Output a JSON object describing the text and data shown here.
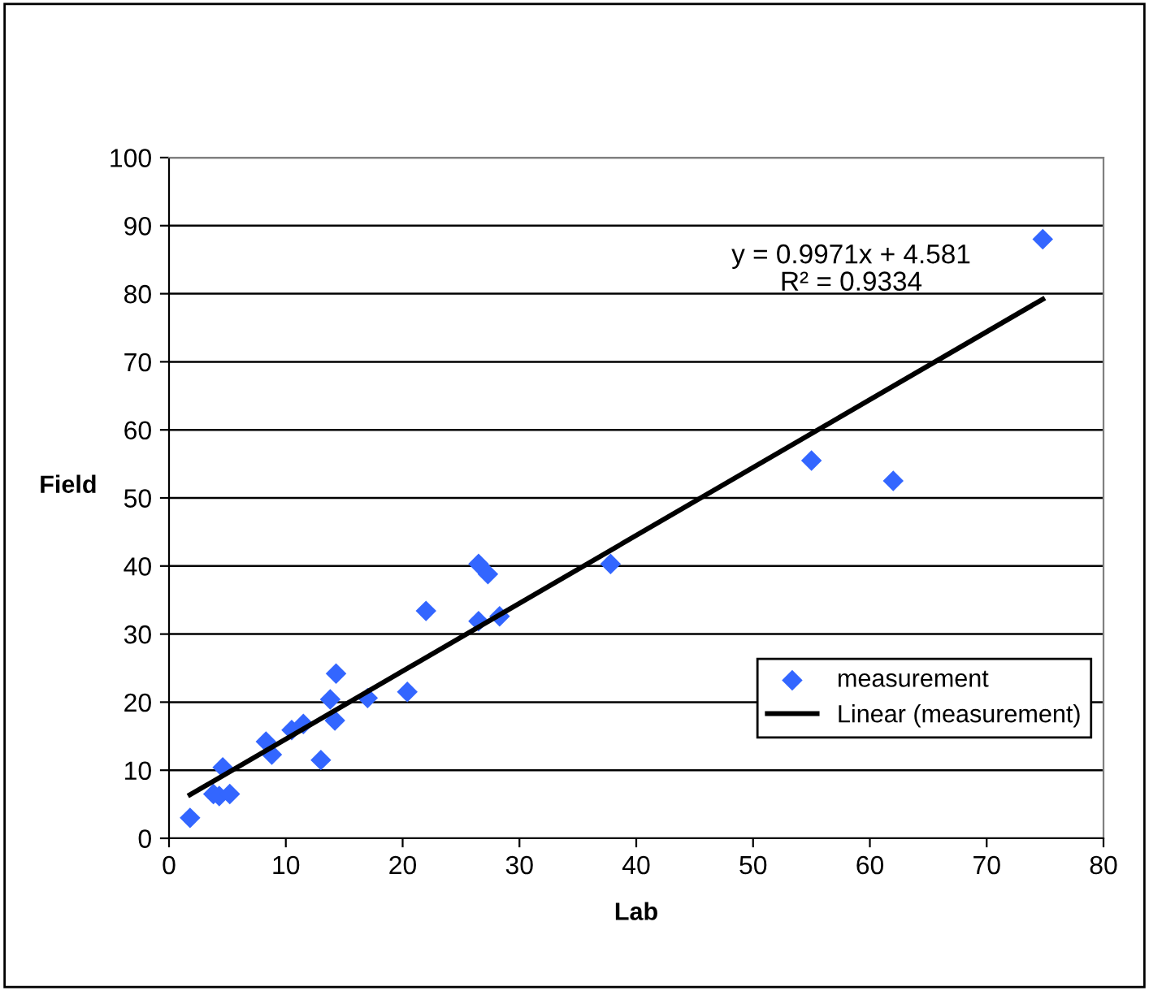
{
  "chart_data": {
    "type": "scatter",
    "xlabel": "Lab",
    "ylabel": "Field",
    "series": [
      {
        "name": "measurement",
        "color": "#3366ff",
        "marker": "diamond",
        "x": [
          1.8,
          3.8,
          4.3,
          4.6,
          5.2,
          8.3,
          8.8,
          10.5,
          11.5,
          13,
          13.8,
          14.3,
          14.2,
          17,
          20.4,
          22,
          26.5,
          27.3,
          26.5,
          28.3,
          37.8,
          55,
          62,
          74.8
        ],
        "values": [
          3,
          6.5,
          6.2,
          10.4,
          6.5,
          14.2,
          12.3,
          15.9,
          16.8,
          11.5,
          20.4,
          24.2,
          17.3,
          20.6,
          21.5,
          33.4,
          40.3,
          38.8,
          31.9,
          32.6,
          40.3,
          55.5,
          52.5,
          88
        ]
      },
      {
        "name": "Linear (measurement)",
        "type": "line",
        "color": "#000000",
        "x": [
          1.8,
          74.8
        ],
        "values": [
          6.4,
          79.2
        ]
      }
    ],
    "annotations": [
      "y = 0.9971x + 4.581",
      "R² = 0.9334"
    ],
    "xlim": [
      0,
      80
    ],
    "xticks": [
      0,
      10,
      20,
      30,
      40,
      50,
      60,
      70,
      80
    ],
    "ylim": [
      0,
      100
    ],
    "yticks": [
      0,
      10,
      20,
      30,
      40,
      50,
      60,
      70,
      80,
      90,
      100
    ],
    "grid": "y",
    "legend": "bottom right"
  }
}
